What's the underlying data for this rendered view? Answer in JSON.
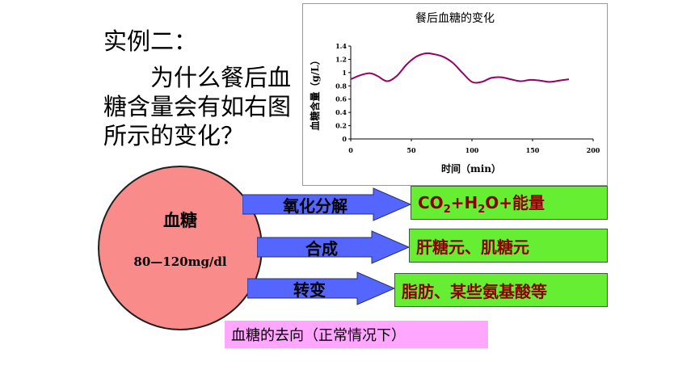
{
  "slide": {
    "heading": "实例二：",
    "question": "　　为什么餐后血糖含量会有如右图所示的变化？"
  },
  "chart_data": {
    "type": "line",
    "title": "餐后血糖的变化",
    "xlabel": "时间（min）",
    "ylabel": "血糖含量（g/L）",
    "xlim": [
      0,
      200
    ],
    "ylim": [
      0,
      1.4
    ],
    "xticks": [
      "0",
      "50",
      "100",
      "150",
      "200"
    ],
    "yticks": [
      "0",
      "0.2",
      "0.4",
      "0.6",
      "0.8",
      "1",
      "1.2",
      "1.4"
    ],
    "grid": false,
    "color": "#990066",
    "x": [
      0,
      8,
      16,
      22,
      30,
      38,
      46,
      54,
      62,
      68,
      76,
      84,
      92,
      100,
      108,
      116,
      124,
      132,
      140,
      148,
      156,
      164,
      172,
      180
    ],
    "y": [
      0.9,
      0.96,
      0.99,
      0.95,
      0.87,
      0.95,
      1.12,
      1.24,
      1.29,
      1.28,
      1.24,
      1.15,
      1.0,
      0.86,
      0.86,
      0.92,
      0.93,
      0.9,
      0.87,
      0.89,
      0.88,
      0.86,
      0.88,
      0.9
    ]
  },
  "glucose": {
    "name": "血糖",
    "range": "80—120mg/dl"
  },
  "pathways": [
    {
      "label": "氧化分解",
      "result_parts": [
        "CO",
        "2",
        "+H",
        "2",
        "O+能量"
      ]
    },
    {
      "label": "合成",
      "result": "肝糖元、肌糖元"
    },
    {
      "label": "转变",
      "result": "脂肪、某些氨基酸等"
    }
  ],
  "colors": {
    "arrow_fill": "#5566ff",
    "arrow_stroke": "#26306e",
    "circle_fill": "#f98b8b",
    "result_fill": "#66ee33",
    "result_text": "#8b0000",
    "caption_fill": "#ffa6ff"
  },
  "caption": "血糖的去向（正常情况下）"
}
